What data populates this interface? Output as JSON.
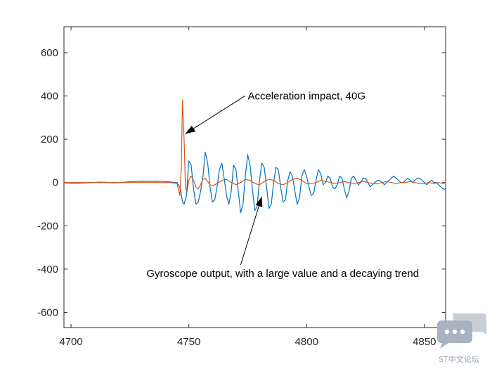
{
  "chart_data": {
    "type": "line",
    "xlim": [
      4697,
      4859
    ],
    "ylim": [
      -670,
      720
    ],
    "x_ticks": [
      4700,
      4750,
      4800,
      4850
    ],
    "y_ticks": [
      -600,
      -400,
      -200,
      0,
      200,
      400,
      600
    ],
    "grid": false,
    "series": [
      {
        "color": "#0072BD",
        "x": [
          4697,
          4700,
          4703,
          4706,
          4709,
          4712,
          4715,
          4718,
          4721,
          4724,
          4727,
          4730,
          4733,
          4736,
          4739,
          4742,
          4745,
          4746.5,
          4747.3,
          4748,
          4749,
          4750,
          4751,
          4752,
          4753,
          4754,
          4755,
          4756,
          4757,
          4758,
          4759,
          4760,
          4761,
          4762,
          4763,
          4764,
          4765,
          4766,
          4767,
          4768,
          4769,
          4770,
          4771,
          4772,
          4773,
          4774,
          4775,
          4776,
          4777,
          4778,
          4779,
          4780,
          4781,
          4782,
          4783,
          4784,
          4785,
          4786,
          4787,
          4788,
          4789,
          4790,
          4791,
          4792,
          4793,
          4794,
          4795,
          4796,
          4797,
          4798,
          4799,
          4800,
          4801,
          4802,
          4803,
          4804,
          4805,
          4806,
          4807,
          4808,
          4809,
          4810,
          4811,
          4812,
          4813,
          4814,
          4815,
          4816,
          4817,
          4818,
          4819,
          4820,
          4821,
          4822,
          4823,
          4824,
          4825,
          4826,
          4827,
          4828,
          4829,
          4830,
          4831,
          4832,
          4833,
          4834,
          4835,
          4836,
          4837,
          4838,
          4839,
          4840,
          4841,
          4842,
          4843,
          4844,
          4845,
          4846,
          4847,
          4848,
          4849,
          4850,
          4851,
          4852,
          4853,
          4854,
          4855,
          4856,
          4857,
          4858,
          4859
        ],
        "y": [
          -2,
          -3,
          -3,
          -2,
          0,
          2,
          1,
          -2,
          0,
          3,
          5,
          6,
          5,
          6,
          5,
          3,
          0,
          -30,
          -90,
          -100,
          -60,
          100,
          80,
          -30,
          -100,
          -90,
          -40,
          30,
          140,
          90,
          -20,
          -90,
          -80,
          -20,
          60,
          90,
          20,
          -60,
          -100,
          -40,
          80,
          60,
          -40,
          -140,
          -100,
          30,
          130,
          80,
          -30,
          -130,
          -110,
          10,
          90,
          70,
          -20,
          -120,
          -100,
          0,
          70,
          60,
          -20,
          -90,
          -80,
          10,
          50,
          30,
          -40,
          -100,
          -70,
          30,
          60,
          30,
          -20,
          -60,
          -50,
          10,
          60,
          40,
          -10,
          0,
          30,
          20,
          -20,
          -30,
          -10,
          30,
          20,
          -30,
          -70,
          -40,
          20,
          30,
          10,
          -10,
          0,
          20,
          20,
          0,
          -20,
          -10,
          0,
          10,
          10,
          0,
          -10,
          0,
          10,
          20,
          30,
          20,
          10,
          0,
          0,
          10,
          20,
          10,
          0,
          10,
          20,
          20,
          10,
          0,
          -10,
          0,
          10,
          0,
          0,
          -10,
          -20,
          -30,
          -30
        ]
      },
      {
        "color": "#D95319",
        "x": [
          4697,
          4705,
          4715,
          4725,
          4735,
          4742,
          4745,
          4746.2,
          4746.8,
          4747.3,
          4748,
          4748.6,
          4749.3,
          4750,
          4751,
          4752,
          4753,
          4754,
          4755,
          4756,
          4757,
          4758,
          4759,
          4760,
          4762,
          4764,
          4766,
          4768,
          4770,
          4772,
          4774,
          4776,
          4778,
          4780,
          4782,
          4784,
          4786,
          4788,
          4790,
          4792,
          4794,
          4796,
          4798,
          4800,
          4802,
          4804,
          4806,
          4808,
          4810,
          4812,
          4814,
          4816,
          4818,
          4820,
          4822,
          4824,
          4826,
          4828,
          4830,
          4832,
          4834,
          4836,
          4838,
          4840,
          4842,
          4844,
          4846,
          4848,
          4850,
          4852,
          4854,
          4856,
          4858,
          4859
        ],
        "y": [
          0,
          0,
          0,
          0,
          0,
          0,
          -5,
          -60,
          60,
          380,
          200,
          -30,
          -40,
          10,
          30,
          10,
          -20,
          -30,
          -10,
          15,
          20,
          5,
          -10,
          -15,
          -5,
          10,
          15,
          0,
          -10,
          0,
          15,
          10,
          -5,
          -10,
          5,
          15,
          10,
          -5,
          -10,
          0,
          15,
          20,
          10,
          -5,
          -5,
          0,
          10,
          5,
          0,
          -5,
          0,
          5,
          0,
          -5,
          0,
          5,
          0,
          -5,
          -5,
          0,
          5,
          0,
          -5,
          0,
          0,
          5,
          0,
          -5,
          -5,
          0,
          -5,
          0,
          -5,
          0
        ]
      }
    ],
    "annotations": [
      {
        "text": "Acceleration impact, 40G",
        "text_xy": [
          4775,
          400
        ],
        "arrow_to": [
          4748.5,
          225
        ]
      },
      {
        "text": "Gyroscope output, with a large value and a decaying trend",
        "text_xy": [
          4732,
          -420
        ],
        "arrow_to": [
          4781,
          -65
        ]
      }
    ]
  },
  "watermark": {
    "text": "ST中文论坛",
    "icon": "chat-bubble-icon"
  }
}
